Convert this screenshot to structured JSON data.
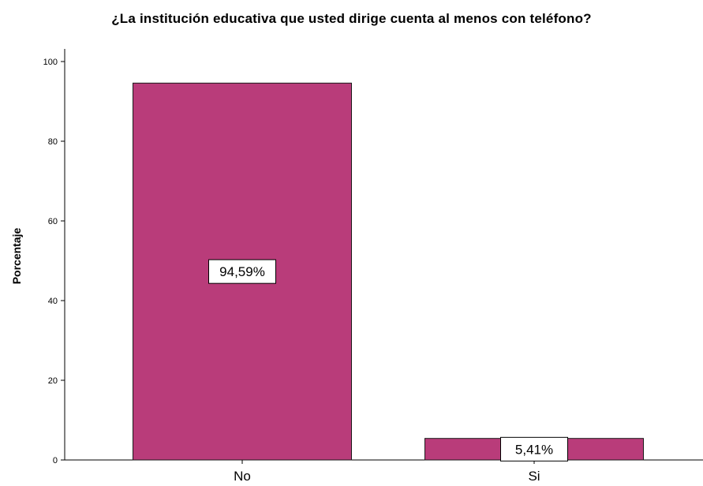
{
  "chart_data": {
    "type": "bar",
    "title": "¿La institución educativa que usted dirige cuenta al menos con teléfono?",
    "xlabel": "",
    "ylabel": "Porcentaje",
    "categories": [
      "No",
      "Si"
    ],
    "values": [
      94.59,
      5.41
    ],
    "data_labels": [
      "94,59%",
      "5,41%"
    ],
    "yticks": [
      "0",
      "20",
      "40",
      "60",
      "80",
      "100"
    ],
    "ylim": [
      0,
      100
    ],
    "grid": false,
    "legend": "none",
    "colors": {
      "bar": "#b93c7a",
      "bar_stroke": "#1a1a1a",
      "axis": "#000000",
      "label_bg": "#ffffff"
    }
  }
}
